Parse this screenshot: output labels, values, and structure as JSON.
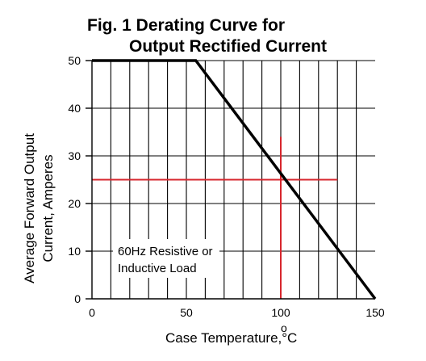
{
  "chart_data": {
    "type": "line",
    "title": [
      "Fig. 1 Derating Curve for",
      "Output Rectified Current"
    ],
    "xlabel": "Case Temperature,°C",
    "ylabel": [
      "Average Forward Output",
      "Current, Amperes"
    ],
    "xlim": [
      0,
      150
    ],
    "ylim": [
      0,
      50
    ],
    "x_ticks": [
      0,
      50,
      100,
      150
    ],
    "y_ticks": [
      0,
      10,
      20,
      30,
      40,
      50
    ],
    "grid": true,
    "series": [
      {
        "x": [
          0,
          55,
          150
        ],
        "y": [
          50,
          50,
          0
        ],
        "color": "#000000"
      }
    ],
    "reference_lines": [
      {
        "orientation": "horizontal",
        "y": 25,
        "x_range": [
          0,
          130
        ],
        "color": "#d7262d"
      },
      {
        "orientation": "vertical",
        "x": 100,
        "y_range": [
          0,
          34
        ],
        "color": "#d7262d"
      }
    ],
    "annotation": [
      "60Hz Resistive or",
      "Inductive Load"
    ],
    "x_unit_superscript": "o"
  }
}
